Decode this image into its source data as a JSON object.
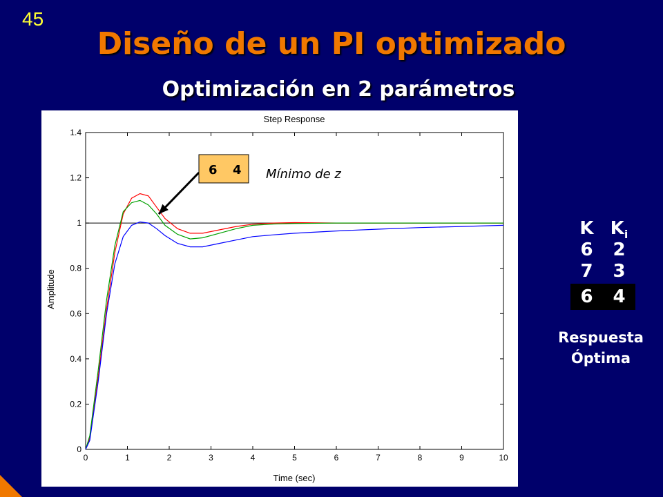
{
  "slide": {
    "number": "45",
    "title": "Diseño de un PI optimizado",
    "subtitle": "Optimización en 2 parámetros"
  },
  "chart_data": {
    "type": "line",
    "title": "Step Response",
    "xlabel": "Time (sec)",
    "ylabel": "Amplitude",
    "xlim": [
      0,
      10
    ],
    "ylim": [
      0,
      1.4
    ],
    "xticks": [
      0,
      1,
      2,
      3,
      4,
      5,
      6,
      7,
      8,
      9,
      10
    ],
    "yticks": [
      0,
      0.2,
      0.4,
      0.6,
      0.8,
      1,
      1.2,
      1.4
    ],
    "ytick_labels": [
      "0",
      "0.2",
      "0.4",
      "0.6",
      "0.8",
      "1",
      "1.2",
      "1.4"
    ],
    "reference_line": 1,
    "grid": false,
    "series": [
      {
        "color": "#ff0000",
        "x": [
          0,
          0.1,
          0.3,
          0.5,
          0.7,
          0.9,
          1.1,
          1.3,
          1.5,
          1.7,
          1.9,
          2.2,
          2.5,
          2.8,
          3.2,
          3.6,
          4,
          4.5,
          5,
          6,
          7,
          8,
          9,
          10
        ],
        "y": [
          0,
          0.05,
          0.32,
          0.62,
          0.87,
          1.04,
          1.11,
          1.13,
          1.12,
          1.07,
          1.02,
          0.975,
          0.955,
          0.955,
          0.97,
          0.985,
          0.995,
          1.0,
          1.002,
          1.0,
          1.0,
          1.0,
          1.0,
          1.0
        ]
      },
      {
        "color": "#00a000",
        "x": [
          0,
          0.1,
          0.3,
          0.5,
          0.7,
          0.9,
          1.1,
          1.3,
          1.5,
          1.7,
          1.9,
          2.2,
          2.5,
          2.8,
          3.2,
          3.6,
          4,
          4.5,
          5,
          6,
          7,
          8,
          9,
          10
        ],
        "y": [
          0,
          0.06,
          0.35,
          0.66,
          0.9,
          1.05,
          1.09,
          1.1,
          1.08,
          1.04,
          0.99,
          0.95,
          0.93,
          0.935,
          0.955,
          0.975,
          0.99,
          0.996,
          0.998,
          1.0,
          1.0,
          1.0,
          1.0,
          1.0
        ]
      },
      {
        "color": "#0000ff",
        "x": [
          0,
          0.1,
          0.3,
          0.5,
          0.7,
          0.9,
          1.1,
          1.3,
          1.5,
          1.7,
          1.9,
          2.2,
          2.5,
          2.8,
          3.2,
          3.6,
          4,
          4.5,
          5,
          6,
          7,
          8,
          9,
          10
        ],
        "y": [
          0,
          0.04,
          0.3,
          0.6,
          0.82,
          0.94,
          0.99,
          1.005,
          1.0,
          0.975,
          0.945,
          0.91,
          0.895,
          0.895,
          0.91,
          0.925,
          0.94,
          0.948,
          0.955,
          0.965,
          0.973,
          0.98,
          0.985,
          0.99
        ]
      }
    ],
    "annotation": {
      "box_text_k": "6",
      "box_text_ki": "4",
      "label": "Mínimo de z",
      "arrow_target": [
        1.75,
        1.04
      ]
    }
  },
  "params_table": {
    "header_k": "K",
    "header_ki_base": "K",
    "header_ki_sub": "i",
    "rows": [
      {
        "k": "6",
        "ki": "2"
      },
      {
        "k": "7",
        "ki": "3"
      },
      {
        "k": "6",
        "ki": "4"
      }
    ]
  },
  "caption": {
    "line1": "Respuesta",
    "line2": "Óptima"
  },
  "colors": {
    "background": "#00006b",
    "title": "#f07800",
    "slide_number": "#ffff33",
    "annotation_box": "#ffc864"
  }
}
